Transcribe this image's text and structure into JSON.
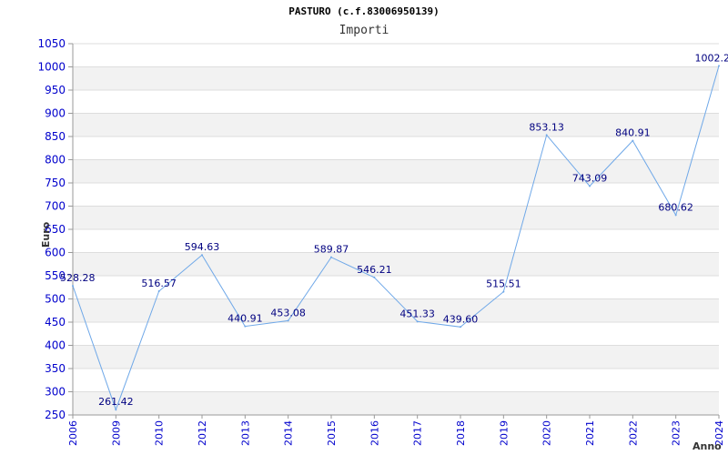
{
  "chart_data": {
    "type": "line",
    "title": "PASTURO (c.f.83006950139)",
    "subtitle": "Importi",
    "xlabel": "Anno",
    "ylabel": "Euro",
    "categories": [
      "2006",
      "2009",
      "2010",
      "2012",
      "2013",
      "2014",
      "2015",
      "2016",
      "2017",
      "2018",
      "2019",
      "2020",
      "2021",
      "2022",
      "2023",
      "2024"
    ],
    "series": [
      {
        "values": [
          528.28,
          261.42,
          516.57,
          594.63,
          440.91,
          453.08,
          589.87,
          546.21,
          451.33,
          439.6,
          515.51,
          853.13,
          743.09,
          840.91,
          680.62,
          1002.2
        ],
        "labels": [
          "528.28",
          "261.42",
          "516.57",
          "594.63",
          "440.91",
          "453.08",
          "589.87",
          "546.21",
          "451.33",
          "439.60",
          "515.51",
          "853.13",
          "743.09",
          "840.91",
          "680.62",
          "1002.2"
        ]
      }
    ],
    "ylim": [
      250,
      1050
    ],
    "yticks": [
      250,
      300,
      350,
      400,
      450,
      500,
      550,
      600,
      650,
      700,
      750,
      800,
      850,
      900,
      950,
      1000,
      1050
    ],
    "grid": true,
    "colors": {
      "line": "#6fa8e8",
      "band": "#f2f2f2",
      "gridline": "#dddddd",
      "tick_text": "#0000cc",
      "data_label": "#000080"
    }
  }
}
